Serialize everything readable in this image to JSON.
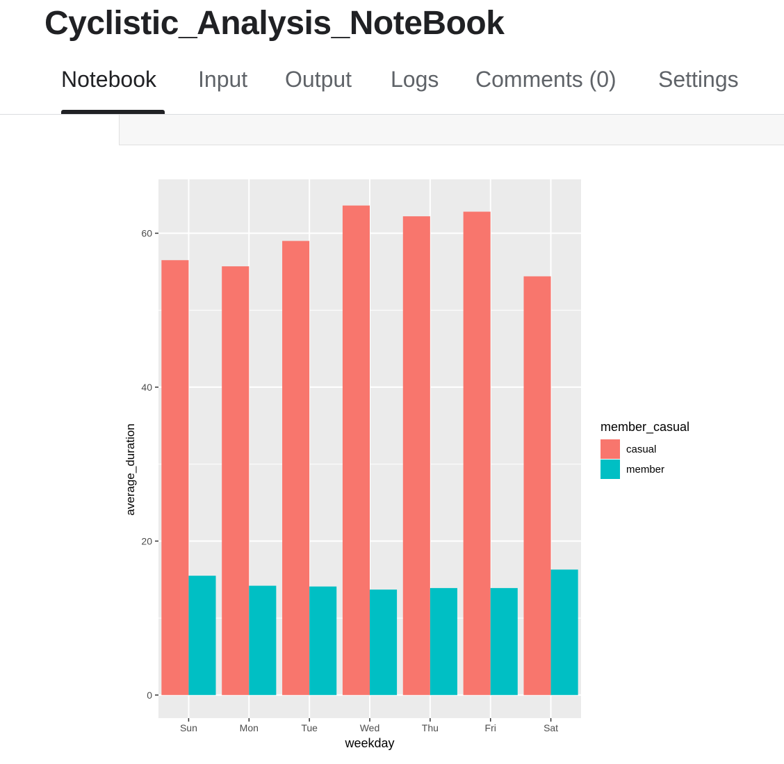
{
  "notebook": {
    "title": "Cyclistic_Analysis_NoteBook"
  },
  "tabs": [
    {
      "label": "Notebook",
      "active": true
    },
    {
      "label": "Input",
      "active": false
    },
    {
      "label": "Output",
      "active": false
    },
    {
      "label": "Logs",
      "active": false
    },
    {
      "label": "Comments (0)",
      "active": false
    },
    {
      "label": "Settings",
      "active": false
    }
  ],
  "colors": {
    "casual": "#F8766D",
    "member": "#00BFC4",
    "panel_bg": "#EBEBEB",
    "grid": "#FFFFFF"
  },
  "chart_data": {
    "type": "bar",
    "title": "",
    "xlabel": "weekday",
    "ylabel": "average_duration",
    "categories": [
      "Sun",
      "Mon",
      "Tue",
      "Wed",
      "Thu",
      "Fri",
      "Sat"
    ],
    "series": [
      {
        "name": "casual",
        "values": [
          56.5,
          55.7,
          59.0,
          63.6,
          62.2,
          62.8,
          54.4
        ]
      },
      {
        "name": "member",
        "values": [
          15.5,
          14.2,
          14.1,
          13.7,
          13.9,
          13.9,
          16.3
        ]
      }
    ],
    "yticks": [
      0,
      20,
      40,
      60
    ],
    "ylim": [
      -3,
      67
    ],
    "grid": true,
    "legend": {
      "title": "member_casual",
      "placement": "right"
    }
  }
}
